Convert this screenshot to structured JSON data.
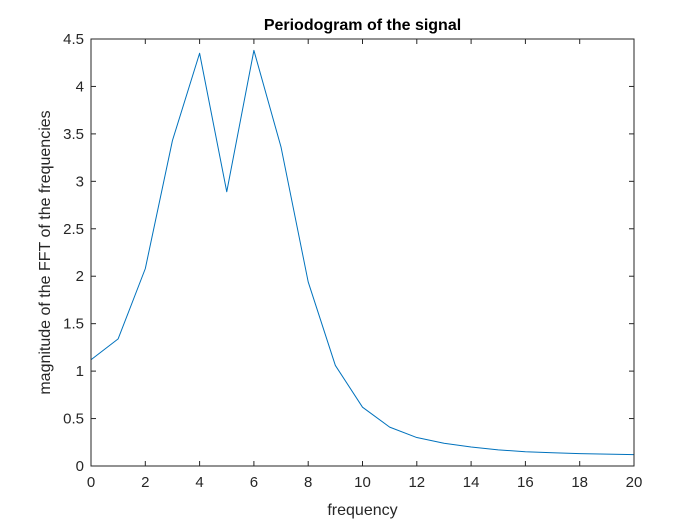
{
  "chart_data": {
    "type": "line",
    "title": "Periodogram of the signal",
    "xlabel": "frequency",
    "ylabel": "magnitude of the FFT of the frequencies",
    "xlim": [
      0,
      20
    ],
    "ylim": [
      0,
      4.5
    ],
    "grid": false,
    "x_ticks": [
      0,
      2,
      4,
      6,
      8,
      10,
      12,
      14,
      16,
      18,
      20
    ],
    "y_ticks": [
      0,
      0.5,
      1,
      1.5,
      2,
      2.5,
      3,
      3.5,
      4,
      4.5
    ],
    "x_tick_labels": [
      "0",
      "2",
      "4",
      "6",
      "8",
      "10",
      "12",
      "14",
      "16",
      "18",
      "20"
    ],
    "y_tick_labels": [
      "0",
      "0.5",
      "1",
      "1.5",
      "2",
      "2.5",
      "3",
      "3.5",
      "4",
      "4.5"
    ],
    "series": [
      {
        "color": "#0072BD",
        "x": [
          0,
          1,
          2,
          3,
          4,
          5,
          6,
          7,
          8,
          9,
          10,
          11,
          12,
          13,
          14,
          15,
          16,
          17,
          18,
          19,
          20
        ],
        "y": [
          1.12,
          1.34,
          2.08,
          3.43,
          4.35,
          2.89,
          4.38,
          3.36,
          1.94,
          1.06,
          0.62,
          0.41,
          0.3,
          0.24,
          0.2,
          0.17,
          0.15,
          0.14,
          0.13,
          0.125,
          0.12
        ]
      }
    ]
  }
}
